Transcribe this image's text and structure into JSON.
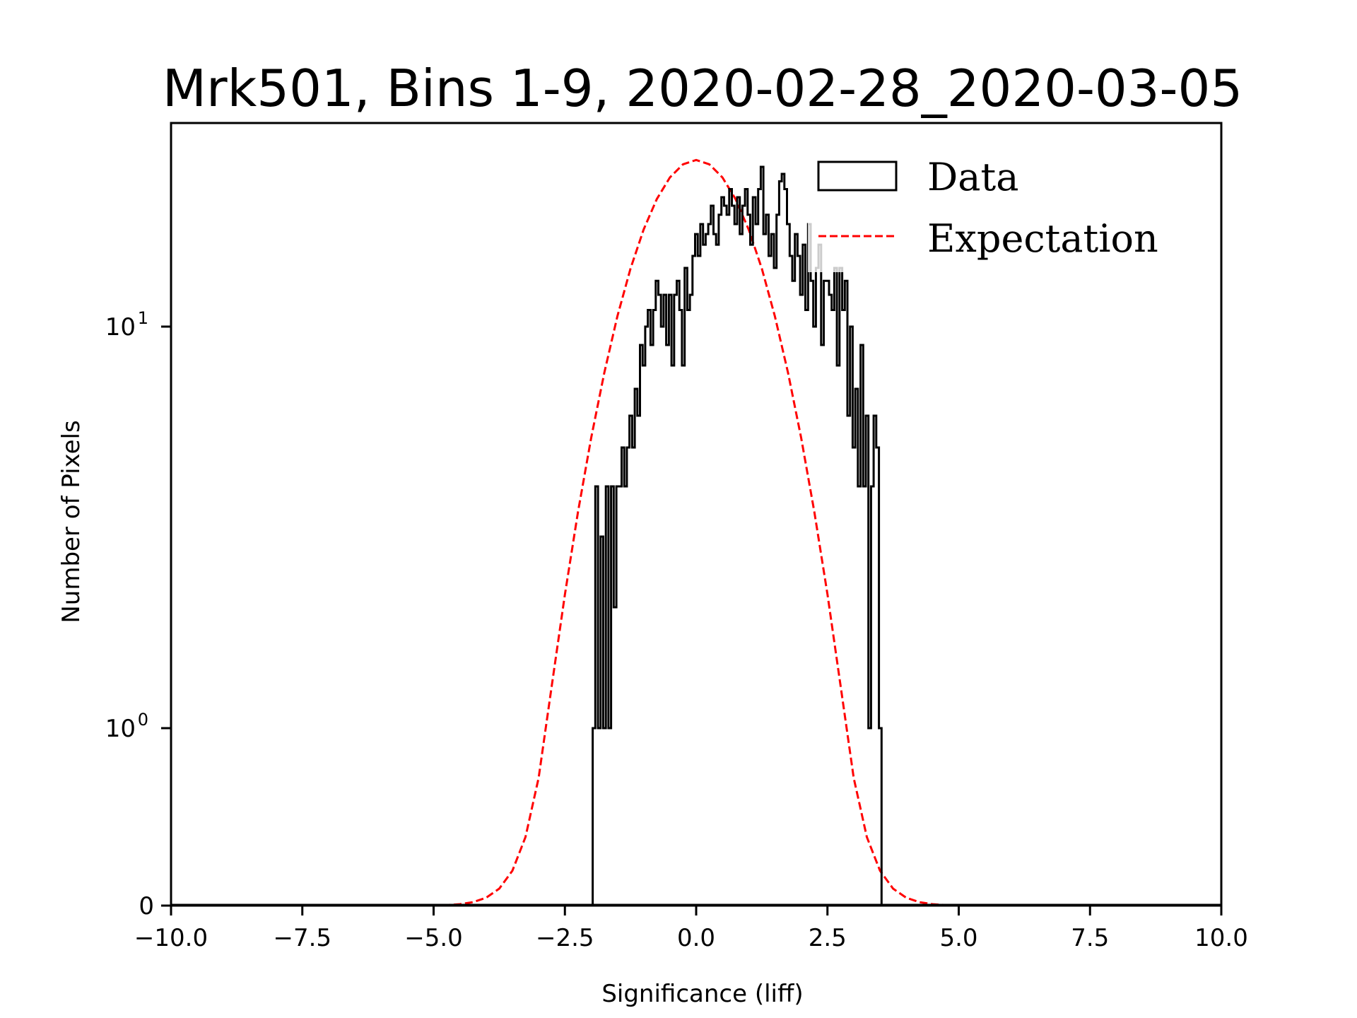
{
  "chart_data": {
    "type": "step-histogram",
    "title": "Mrk501, Bins 1-9, 2020-02-28_2020-03-05",
    "xlabel": "Significance (liff)",
    "ylabel": "Number of Pixels",
    "xlim": [
      -10.0,
      10.0
    ],
    "ylim": [
      0,
      32
    ],
    "yscale": "symlog",
    "grid": false,
    "x_ticks": [
      "−10.0",
      "−7.5",
      "−5.0",
      "−2.5",
      "0.0",
      "2.5",
      "5.0",
      "7.5",
      "10.0"
    ],
    "x_tick_values": [
      -10.0,
      -7.5,
      -5.0,
      -2.5,
      0.0,
      2.5,
      5.0,
      7.5,
      10.0
    ],
    "y_ticks": [
      {
        "value": 0,
        "base": "0",
        "exp": ""
      },
      {
        "value": 1,
        "base": "10",
        "exp": "0"
      },
      {
        "value": 10,
        "base": "10",
        "exp": "1"
      }
    ],
    "legend": {
      "placement": "upper-right",
      "entries": [
        {
          "label": "Data",
          "style": "histogram-step",
          "color": "#000000"
        },
        {
          "label": "Expectation",
          "style": "dashed-line",
          "color": "#ff0000"
        }
      ]
    },
    "series": [
      {
        "name": "Data",
        "kind": "histogram",
        "color": "#000000",
        "bin_start": -1.97,
        "bin_width": 0.05,
        "counts": [
          1,
          4,
          1,
          3,
          1,
          4,
          1,
          4,
          2,
          4,
          4,
          5,
          4,
          5,
          6,
          5,
          7,
          6,
          9,
          8,
          10,
          11,
          9,
          11,
          13,
          12,
          10,
          12,
          9,
          12,
          8,
          12,
          13,
          11,
          8,
          14,
          11,
          12,
          15,
          17,
          15,
          18,
          16,
          17,
          18,
          20,
          17,
          16,
          19,
          21,
          20,
          19,
          22,
          20,
          18,
          21,
          17,
          20,
          22,
          19,
          16,
          21,
          18,
          22,
          25,
          17,
          19,
          15,
          17,
          14,
          19,
          23,
          24,
          22,
          18,
          15,
          13,
          17,
          15,
          12,
          16,
          11,
          18,
          13,
          10,
          14,
          16,
          9,
          13,
          13,
          12,
          11,
          14,
          8,
          14,
          11,
          13,
          6,
          10,
          5,
          7,
          4,
          9,
          4,
          6,
          1,
          4,
          6,
          5,
          1
        ]
      },
      {
        "name": "Expectation",
        "kind": "gaussian",
        "color": "#ff0000",
        "amplitude": 26,
        "mean": 0.0,
        "sigma": 1.12,
        "x_range": [
          -10,
          10
        ],
        "step": 0.25
      }
    ]
  }
}
